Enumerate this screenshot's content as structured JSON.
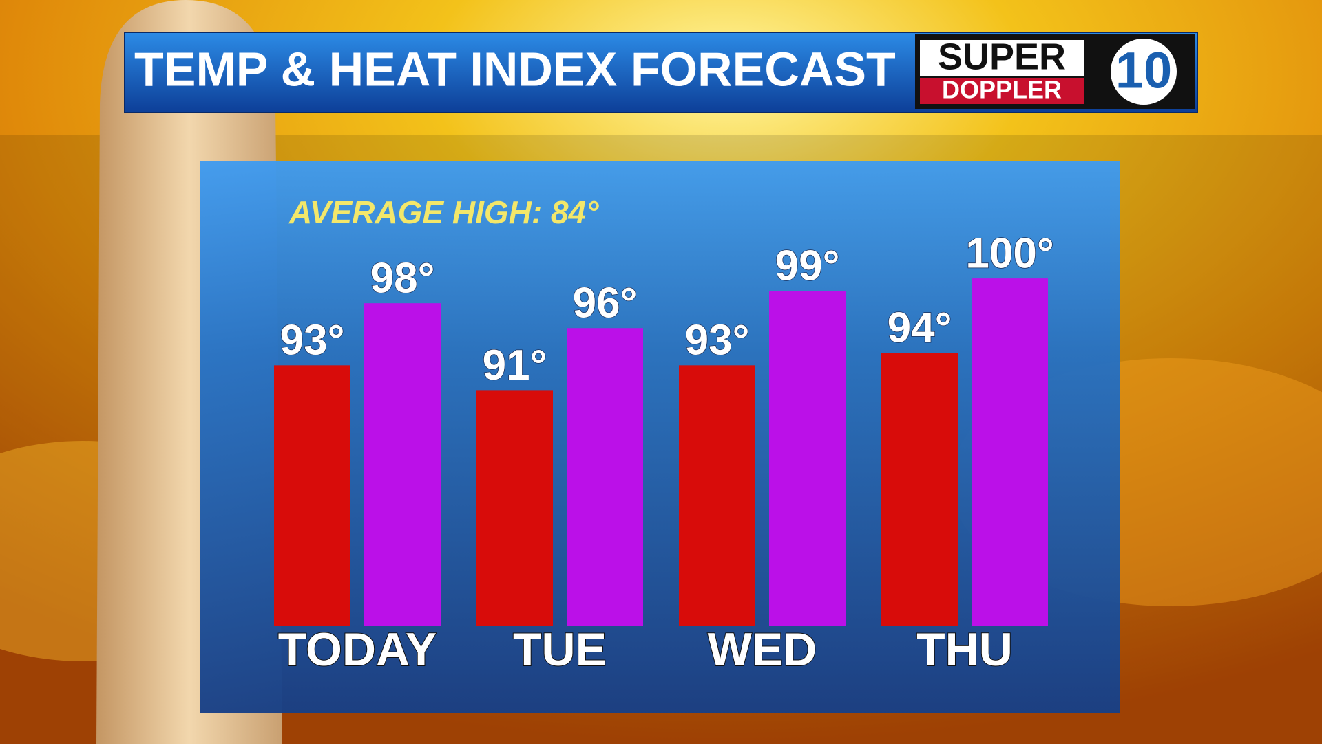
{
  "chart_data": {
    "type": "bar",
    "title": "TEMP & HEAT INDEX FORECAST",
    "annotation": "AVERAGE HIGH: 84°",
    "categories": [
      "TODAY",
      "TUE",
      "WED",
      "THU"
    ],
    "series": [
      {
        "color": "#d80c0a",
        "values": [
          93,
          91,
          93,
          94
        ],
        "value_labels": [
          "93°",
          "91°",
          "93°",
          "94°"
        ]
      },
      {
        "color": "#bb10e8",
        "values": [
          98,
          96,
          99,
          100
        ],
        "value_labels": [
          "98°",
          "96°",
          "99°",
          "100°"
        ]
      }
    ],
    "ylim": [
      72,
      104
    ]
  },
  "logo": {
    "line1": "SUPER",
    "line2": "DOPPLER",
    "number": "10"
  }
}
